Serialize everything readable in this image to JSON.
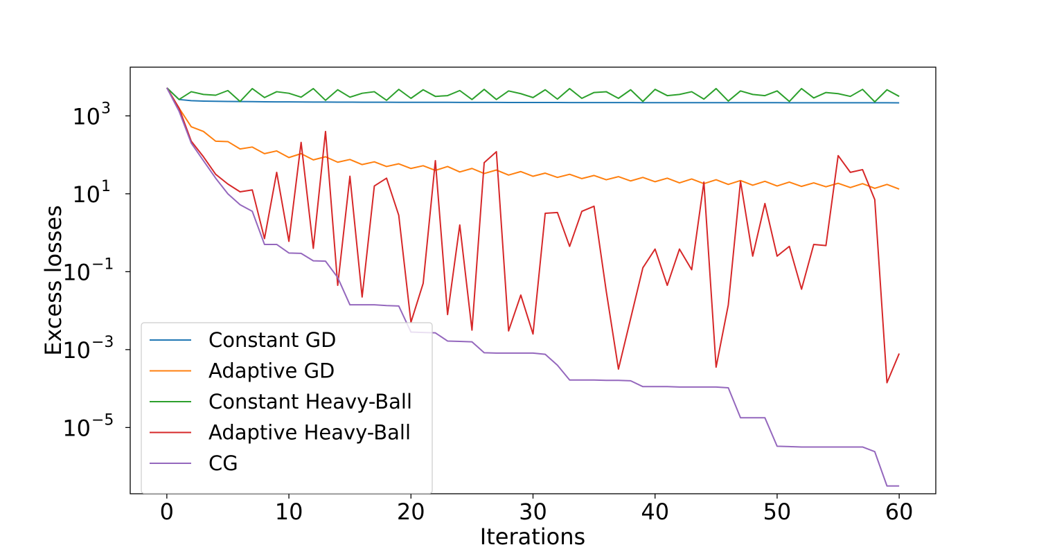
{
  "chart_data": {
    "type": "line",
    "title": "",
    "xlabel": "Iterations",
    "ylabel": "Excess losses",
    "xlim": [
      -3,
      63
    ],
    "ylim_log10": [
      -6.7,
      4.25
    ],
    "yscale": "log",
    "grid": false,
    "legend_position": "lower-left",
    "x_ticks": [
      0,
      10,
      20,
      30,
      40,
      50,
      60
    ],
    "x_tick_labels": [
      "0",
      "10",
      "20",
      "30",
      "40",
      "50",
      "60"
    ],
    "y_ticks_log10": [
      3,
      1,
      -1,
      -3,
      -5
    ],
    "y_tick_labels": [
      {
        "base": "10",
        "exp": "3"
      },
      {
        "base": "10",
        "exp": "1"
      },
      {
        "base": "10",
        "exp": "−1"
      },
      {
        "base": "10",
        "exp": "−3"
      },
      {
        "base": "10",
        "exp": "−5"
      }
    ],
    "x": [
      0,
      1,
      2,
      3,
      4,
      5,
      6,
      7,
      8,
      9,
      10,
      11,
      12,
      13,
      14,
      15,
      16,
      17,
      18,
      19,
      20,
      21,
      22,
      23,
      24,
      25,
      26,
      27,
      28,
      29,
      30,
      31,
      32,
      33,
      34,
      35,
      36,
      37,
      38,
      39,
      40,
      41,
      42,
      43,
      44,
      45,
      46,
      47,
      48,
      49,
      50,
      51,
      52,
      53,
      54,
      55,
      56,
      57,
      58,
      59,
      60
    ],
    "series": [
      {
        "name": "Constant GD",
        "color": "#1f77b4",
        "log10_values": [
          3.72,
          3.42,
          3.39,
          3.38,
          3.375,
          3.37,
          3.368,
          3.365,
          3.362,
          3.36,
          3.358,
          3.356,
          3.355,
          3.354,
          3.353,
          3.352,
          3.351,
          3.35,
          3.35,
          3.349,
          3.348,
          3.348,
          3.347,
          3.347,
          3.346,
          3.346,
          3.345,
          3.345,
          3.344,
          3.344,
          3.344,
          3.343,
          3.343,
          3.342,
          3.342,
          3.342,
          3.341,
          3.341,
          3.341,
          3.34,
          3.34,
          3.34,
          3.34,
          3.339,
          3.339,
          3.339,
          3.339,
          3.338,
          3.338,
          3.338,
          3.338,
          3.337,
          3.337,
          3.337,
          3.337,
          3.336,
          3.336,
          3.336,
          3.336,
          3.336,
          3.335
        ]
      },
      {
        "name": "Adaptive GD",
        "color": "#ff7f0e",
        "log10_values": [
          3.72,
          3.2,
          2.72,
          2.6,
          2.35,
          2.34,
          2.15,
          2.2,
          2.03,
          2.1,
          1.93,
          2.03,
          1.87,
          1.95,
          1.81,
          1.88,
          1.75,
          1.82,
          1.7,
          1.77,
          1.65,
          1.72,
          1.6,
          1.7,
          1.56,
          1.65,
          1.52,
          1.61,
          1.48,
          1.57,
          1.45,
          1.53,
          1.42,
          1.5,
          1.39,
          1.47,
          1.36,
          1.44,
          1.33,
          1.42,
          1.31,
          1.4,
          1.28,
          1.38,
          1.26,
          1.36,
          1.24,
          1.34,
          1.22,
          1.32,
          1.2,
          1.3,
          1.19,
          1.28,
          1.18,
          1.27,
          1.16,
          1.26,
          1.14,
          1.24,
          1.12
        ]
      },
      {
        "name": "Constant Heavy-Ball",
        "color": "#2ca02c",
        "log10_values": [
          3.72,
          3.42,
          3.62,
          3.55,
          3.53,
          3.65,
          3.37,
          3.7,
          3.47,
          3.62,
          3.58,
          3.48,
          3.7,
          3.4,
          3.67,
          3.48,
          3.58,
          3.62,
          3.4,
          3.68,
          3.45,
          3.67,
          3.5,
          3.52,
          3.65,
          3.42,
          3.68,
          3.42,
          3.64,
          3.57,
          3.47,
          3.67,
          3.43,
          3.7,
          3.45,
          3.6,
          3.62,
          3.45,
          3.67,
          3.37,
          3.68,
          3.52,
          3.55,
          3.62,
          3.43,
          3.7,
          3.38,
          3.64,
          3.55,
          3.52,
          3.64,
          3.37,
          3.7,
          3.46,
          3.6,
          3.57,
          3.5,
          3.68,
          3.36,
          3.67,
          3.5
        ]
      },
      {
        "name": "Adaptive Heavy-Ball",
        "color": "#d62728",
        "log10_values": [
          3.72,
          3.2,
          2.35,
          1.95,
          1.5,
          1.25,
          1.05,
          1.1,
          -0.15,
          1.55,
          -0.22,
          2.32,
          -0.4,
          2.6,
          -1.35,
          1.45,
          -1.65,
          1.2,
          1.4,
          0.45,
          -2.3,
          -1.3,
          1.85,
          -2.1,
          0.2,
          -2.5,
          1.8,
          2.08,
          -2.52,
          -1.6,
          -2.6,
          0.5,
          0.52,
          -0.35,
          0.55,
          0.68,
          -1.5,
          -3.5,
          -2.2,
          -0.9,
          -0.42,
          -1.35,
          -0.42,
          -0.95,
          1.3,
          -3.45,
          -1.85,
          1.32,
          -0.6,
          0.75,
          -0.6,
          -0.35,
          -1.45,
          -0.3,
          -0.33,
          1.98,
          1.55,
          1.62,
          0.85,
          -3.85,
          -3.1
        ]
      },
      {
        "name": "CG",
        "color": "#9467bd",
        "log10_values": [
          3.72,
          3.12,
          2.3,
          1.85,
          1.4,
          1.0,
          0.72,
          0.55,
          -0.3,
          -0.3,
          -0.52,
          -0.53,
          -0.72,
          -0.73,
          -1.15,
          -1.85,
          -1.85,
          -1.85,
          -1.87,
          -1.88,
          -2.55,
          -2.56,
          -2.57,
          -2.78,
          -2.79,
          -2.8,
          -3.08,
          -3.09,
          -3.09,
          -3.09,
          -3.09,
          -3.12,
          -3.4,
          -3.78,
          -3.78,
          -3.78,
          -3.79,
          -3.79,
          -3.8,
          -3.95,
          -3.95,
          -3.95,
          -3.96,
          -3.96,
          -3.96,
          -3.96,
          -3.98,
          -4.75,
          -4.75,
          -4.75,
          -5.48,
          -5.49,
          -5.5,
          -5.5,
          -5.5,
          -5.5,
          -5.5,
          -5.5,
          -5.62,
          -6.5,
          -6.5
        ]
      }
    ]
  }
}
